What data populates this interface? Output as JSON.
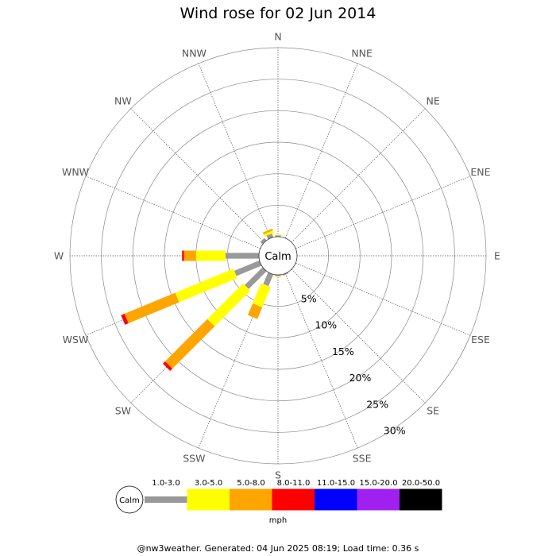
{
  "chart_data": {
    "type": "wind-rose",
    "title": "Wind rose for 02 Jun 2014",
    "directions": [
      "N",
      "NNE",
      "NE",
      "ENE",
      "E",
      "ESE",
      "SE",
      "SSE",
      "S",
      "SSW",
      "SW",
      "WSW",
      "W",
      "WNW",
      "NW",
      "NNW"
    ],
    "radial_unit": "%",
    "radial_ticks": [
      5,
      10,
      15,
      20,
      25,
      30
    ],
    "radial_tick_labels": [
      "5%",
      "10%",
      "15%",
      "20%",
      "25%",
      "30%"
    ],
    "radial_max": 30,
    "calm_label": "Calm",
    "speed_unit": "mph",
    "bins": [
      {
        "label": "1.0-3.0",
        "color": "#999999"
      },
      {
        "label": "3.0-5.0",
        "color": "#ffff00"
      },
      {
        "label": "5.0-8.0",
        "color": "#ffa500"
      },
      {
        "label": "8.0-11.0",
        "color": "#ff0000"
      },
      {
        "label": "11.0-15.0",
        "color": "#0000ff"
      },
      {
        "label": "15.0-20.0",
        "color": "#a020f0"
      },
      {
        "label": "20.0-50.0",
        "color": "#000000"
      }
    ],
    "series": [
      {
        "direction": "N",
        "cumulative": [
          0.2,
          0.3,
          0.3,
          0.3,
          0.3,
          0.3,
          0.3
        ]
      },
      {
        "direction": "NNW",
        "cumulative": [
          0.6,
          1.0,
          1.3,
          1.3,
          1.3,
          1.3,
          1.3
        ]
      },
      {
        "direction": "NW",
        "cumulative": [
          0.5,
          0.5,
          0.5,
          0.5,
          0.5,
          0.5,
          0.5
        ]
      },
      {
        "direction": "S",
        "cumulative": [
          0.2,
          0.3,
          0.3,
          0.3,
          0.3,
          0.3,
          0.3
        ]
      },
      {
        "direction": "SSE",
        "cumulative": [
          0.2,
          0.2,
          0.2,
          0.2,
          0.2,
          0.2,
          0.2
        ]
      },
      {
        "direction": "SSW",
        "cumulative": [
          2.0,
          5.5,
          7.5,
          7.5,
          7.5,
          7.5,
          7.5
        ]
      },
      {
        "direction": "SW",
        "cumulative": [
          4.0,
          12.0,
          21.5,
          22.0,
          22.0,
          22.0,
          22.0
        ]
      },
      {
        "direction": "WSW",
        "cumulative": [
          4.3,
          14.3,
          23.0,
          23.6,
          23.6,
          23.6,
          23.6
        ]
      },
      {
        "direction": "W",
        "cumulative": [
          5.3,
          10.0,
          11.9,
          12.2,
          12.2,
          12.2,
          12.2
        ]
      }
    ]
  },
  "footer": "@nw3weather. Generated: 04 Jun 2025 08:19; Load time: 0.36 s"
}
